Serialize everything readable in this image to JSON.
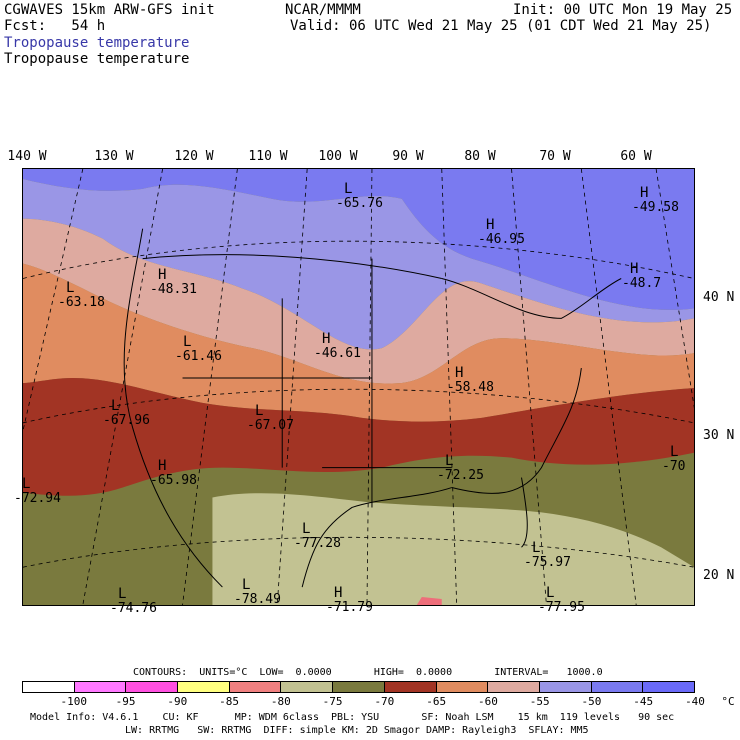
{
  "header": {
    "model_line": "CGWAVES 15km ARW-GFS init",
    "fcst_line": "Fcst:   54 h",
    "org": "NCAR/MMMM",
    "init_line": "Init: 00 UTC Mon 19 May 25",
    "valid_line": "Valid: 06 UTC Wed 21 May 25 (01 CDT Wed 21 May 25)",
    "field_line_blue": "Tropopause temperature",
    "field_line_black": "Tropopause temperature"
  },
  "axes": {
    "longitude_labels": [
      "140 W",
      "130 W",
      "120 W",
      "110 W",
      "100 W",
      "90 W",
      "80 W",
      "70 W",
      "60 W"
    ],
    "latitude_labels": [
      "40 N",
      "30 N",
      "20 N"
    ]
  },
  "map": {
    "band_colors": {
      "gt_-45": "#7a7af0",
      "m50_m45": "#9a96e6",
      "m55_m50": "#deaaa0",
      "m60_m55": "#e08c60",
      "m65_m60": "#a23424",
      "m70_m65": "#7a7a3e",
      "m75_m70": "#c2c292",
      "m80_m75": "#ee6e7a",
      "ocean_land_outline": "#000000"
    },
    "annotations": [
      {
        "symbol": "L",
        "value": "-65.76"
      },
      {
        "symbol": "H",
        "value": "-49.58"
      },
      {
        "symbol": "H",
        "value": "-46.95"
      },
      {
        "symbol": "H",
        "value": "-48.31"
      },
      {
        "symbol": "L",
        "value": "-63.18"
      },
      {
        "symbol": "H",
        "value": "-48.7"
      },
      {
        "symbol": "L",
        "value": "-61.46"
      },
      {
        "symbol": "H",
        "value": "-46.61"
      },
      {
        "symbol": "H",
        "value": "-58.48"
      },
      {
        "symbol": "L",
        "value": "-67.96"
      },
      {
        "symbol": "L",
        "value": "-67.07"
      },
      {
        "symbol": "L",
        "value": "-70"
      },
      {
        "symbol": "H",
        "value": "-65.98"
      },
      {
        "symbol": "L",
        "value": "-72.25"
      },
      {
        "symbol": "L",
        "value": "-72.94"
      },
      {
        "symbol": "L",
        "value": "-77.28"
      },
      {
        "symbol": "L",
        "value": "-75.97"
      },
      {
        "symbol": "L",
        "value": "-74.76"
      },
      {
        "symbol": "L",
        "value": "-78.49"
      },
      {
        "symbol": "H",
        "value": "-71.79"
      },
      {
        "symbol": "L",
        "value": "-77.95"
      }
    ]
  },
  "contours": {
    "line": "CONTOURS:  UNITS=°C  LOW=  0.0000       HIGH=  0.0000       INTERVAL=   1000.0"
  },
  "colorbar": {
    "colors": [
      "#ffffff",
      "#ff78ff",
      "#ff50e0",
      "#ffff80",
      "#f08080",
      "#c2c292",
      "#7a7a3e",
      "#a23424",
      "#e08c60",
      "#deaaa0",
      "#9a96e6",
      "#7a7af0",
      "#6a6af8"
    ],
    "ticks": [
      "-100",
      "-95",
      "-90",
      "-85",
      "-80",
      "-75",
      "-70",
      "-65",
      "-60",
      "-55",
      "-50",
      "-45",
      "-40",
      "°C"
    ]
  },
  "footer": {
    "line1": "Model Info: V4.6.1    CU: KF      MP: WDM 6class  PBL: YSU       SF: Noah LSM    15 km  119 levels   90 sec",
    "line2": "LW: RRTMG   SW: RRTMG  DIFF: simple KM: 2D Smagor DAMP: Rayleigh3  SFLAY: MM5"
  }
}
